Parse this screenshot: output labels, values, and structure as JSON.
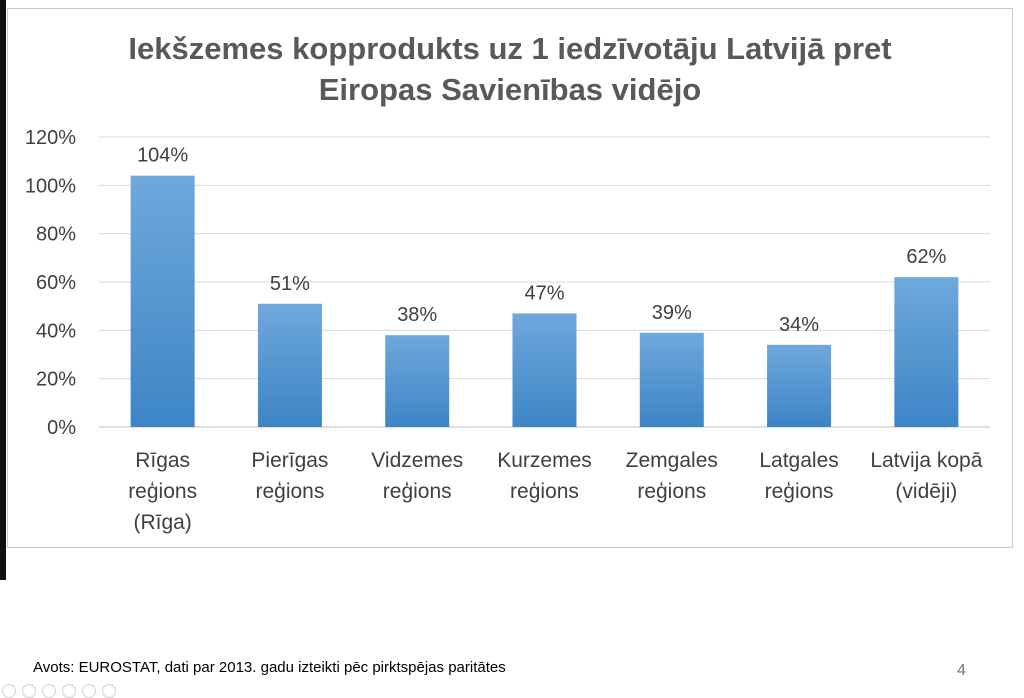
{
  "chart_data": {
    "type": "bar",
    "title_lines": [
      "Iekšzemes kopprodukts uz 1 iedzīvotāju Latvijā pret",
      "Eiropas Savienības vidējo"
    ],
    "categories": [
      [
        "Rīgas",
        "reģions",
        "(Rīga)"
      ],
      [
        "Pierīgas",
        "reģions"
      ],
      [
        "Vidzemes",
        "reģions"
      ],
      [
        "Kurzemes",
        "reģions"
      ],
      [
        "Zemgales",
        "reģions"
      ],
      [
        "Latgales",
        "reģions"
      ],
      [
        "Latvija kopā",
        "(vidēji)"
      ]
    ],
    "values": [
      104,
      51,
      38,
      47,
      39,
      34,
      62
    ],
    "data_labels": [
      "104%",
      "51%",
      "38%",
      "47%",
      "39%",
      "34%",
      "62%"
    ],
    "yticks": [
      "0%",
      "20%",
      "40%",
      "60%",
      "80%",
      "100%",
      "120%"
    ],
    "ylim": [
      0,
      120
    ],
    "grid": true,
    "bar_color": "#5b9bd5"
  },
  "footer": {
    "source": "Avots: EUROSTAT, dati par 2013. gadu izteikti pēc pirktspējas paritātes",
    "slide_number": "4"
  }
}
